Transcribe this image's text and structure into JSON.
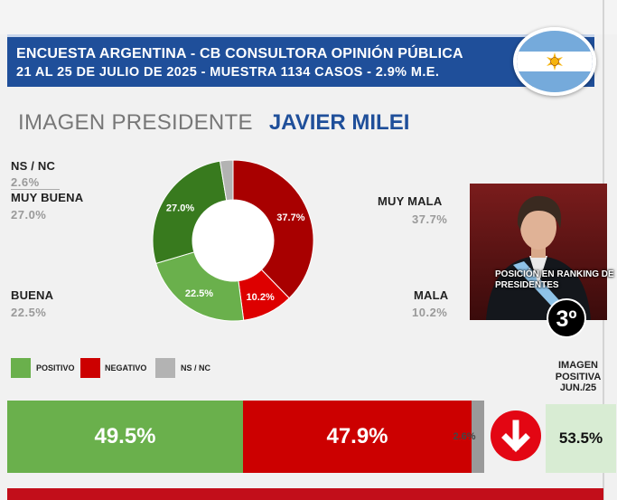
{
  "header": {
    "line1": "ENCUESTA ARGENTINA - CB CONSULTORA OPINIÓN PÚBLICA",
    "line2": "21  AL 25 DE JULIO DE 2025 - MUESTRA 1134 CASOS - 2.9% M.E."
  },
  "title": {
    "prefix": "IMAGEN PRESIDENTE",
    "name": "JAVIER MILEI"
  },
  "rank": {
    "label": "POSICIÓN EN RANKING DE PRESIDENTES",
    "value": "3º"
  },
  "legend": [
    {
      "label": "POSITIVO",
      "color": "#6ab04c"
    },
    {
      "label": "NEGATIVO",
      "color": "#cc0000"
    },
    {
      "label": "NS / NC",
      "color": "#b3b3b3"
    }
  ],
  "imagen_positiva": {
    "label": "IMAGEN POSITIVA JUN./25",
    "value": "53.5%"
  },
  "chart_data": [
    {
      "type": "pie",
      "variant": "donut",
      "title": "IMAGEN PRESIDENTE JAVIER MILEI",
      "slices": [
        {
          "name": "MUY MALA",
          "value": 37.7,
          "label": "37.7%",
          "color": "#a80000"
        },
        {
          "name": "MALA",
          "value": 10.2,
          "label": "10.2%",
          "color": "#dd0000"
        },
        {
          "name": "BUENA",
          "value": 22.5,
          "label": "22.5%",
          "color": "#6ab04c"
        },
        {
          "name": "MUY BUENA",
          "value": 27.0,
          "label": "27.0%",
          "color": "#387a1e"
        },
        {
          "name": "NS / NC",
          "value": 2.6,
          "label": "2.6%",
          "color": "#b3b3b3"
        }
      ],
      "outside_labels": {
        "ns": {
          "name": "NS / NC",
          "value": "2.6%"
        },
        "muy_buena": {
          "name": "MUY BUENA",
          "value": "27.0%"
        },
        "buena": {
          "name": "BUENA",
          "value": "22.5%"
        },
        "muy_mala": {
          "name": "MUY MALA",
          "value": "37.7%"
        },
        "mala": {
          "name": "MALA",
          "value": "10.2%"
        }
      }
    },
    {
      "type": "bar",
      "orientation": "horizontal-stacked",
      "categories": [
        "POSITIVO",
        "NEGATIVO",
        "NS / NC"
      ],
      "values": [
        49.5,
        47.9,
        2.6
      ],
      "labels": [
        "49.5%",
        "47.9%",
        "2.6%"
      ],
      "colors": [
        "#6ab04c",
        "#cc0000",
        "#9a9a9a"
      ]
    }
  ]
}
